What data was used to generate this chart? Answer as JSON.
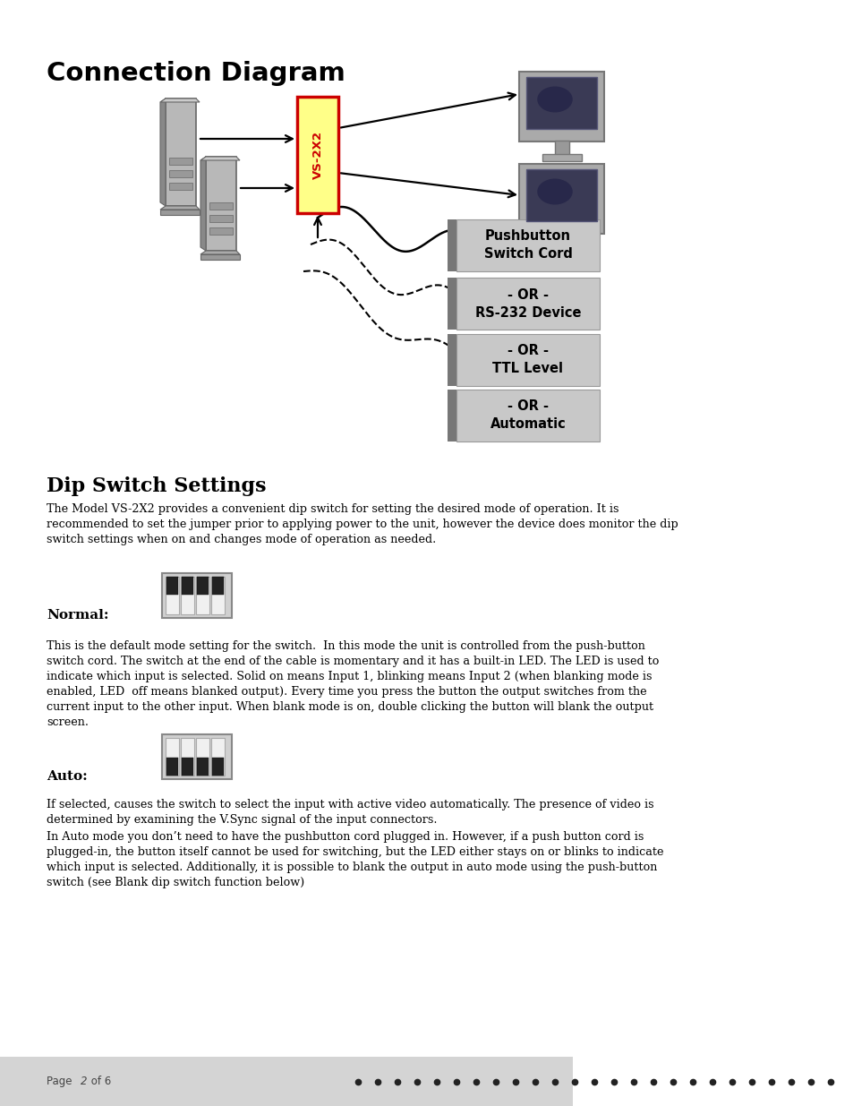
{
  "title": "Connection Diagram",
  "dip_title": "Dip Switch Settings",
  "dip_intro": "The Model VS-2X2 provides a convenient dip switch for setting the desired mode of operation. It is\nrecommended to set the jumper prior to applying power to the unit, however the device does monitor the dip\nswitch settings when on and changes mode of operation as needed.",
  "normal_label": "Normal:",
  "normal_text": "This is the default mode setting for the switch.  In this mode the unit is controlled from the push-button\nswitch cord. The switch at the end of the cable is momentary and it has a built-in LED. The LED is used to\nindicate which input is selected. Solid on means Input 1, blinking means Input 2 (when blanking mode is\nenabled, LED  off means blanked output). Every time you press the button the output switches from the\ncurrent input to the other input. When blank mode is on, double clicking the button will blank the output\nscreen.",
  "auto_label": "Auto:",
  "auto_text1": "If selected, causes the switch to select the input with active video automatically. The presence of video is\ndetermined by examining the V.Sync signal of the input connectors.",
  "auto_text2": "In Auto mode you don’t need to have the pushbutton cord plugged in. However, if a push button cord is\nplugged-in, the button itself cannot be used for switching, but the LED either stays on or blinks to indicate\nwhich input is selected. Additionally, it is possible to blank the output in auto mode using the push-button\nswitch (see Blank dip switch function below)",
  "box_labels": [
    "Pushbutton\nSwitch Cord",
    "- OR -\nRS-232 Device",
    "- OR -\nTTL Level",
    "- OR -\nAutomatic"
  ],
  "footer_text": "Page ",
  "footer_num": "2",
  "footer_rest": " of 6",
  "bg_color": "#ffffff",
  "footer_bg": "#d8d8d8",
  "vs2x2_fill": "#ffff88",
  "vs2x2_border": "#cc0000",
  "box_dark": "#888888",
  "box_light": "#c0c0c0"
}
